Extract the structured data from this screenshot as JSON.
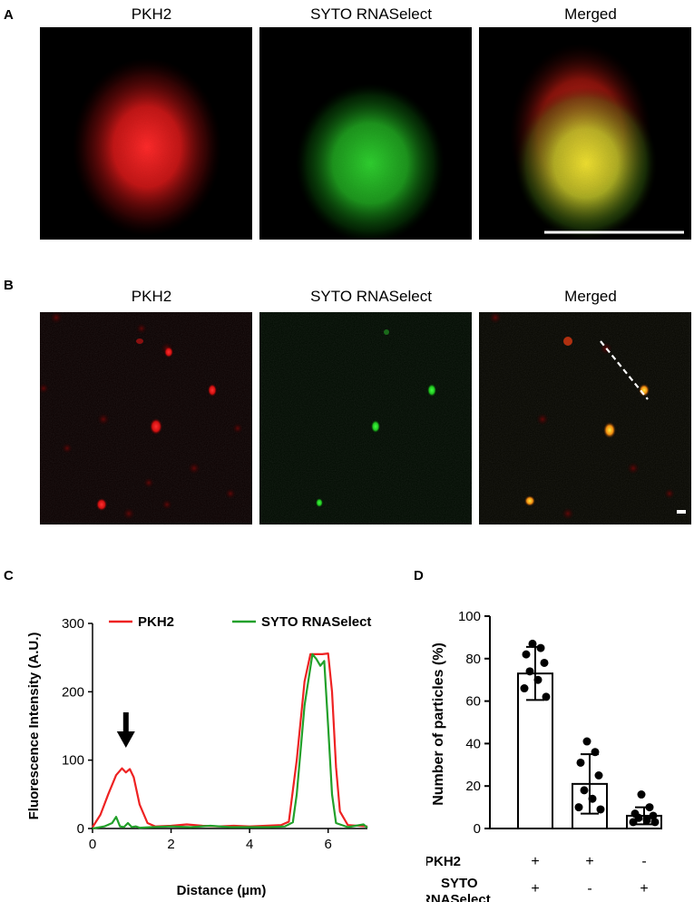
{
  "panels": {
    "A": {
      "letter": "A",
      "titles": [
        "PKH2",
        "SYTO RNASelect",
        "Merged"
      ]
    },
    "B": {
      "letter": "B",
      "titles": [
        "PKH2",
        "SYTO RNASelect",
        "Merged"
      ]
    },
    "C": {
      "letter": "C"
    },
    "D": {
      "letter": "D"
    }
  },
  "colors": {
    "pkh2": "#ee2222",
    "syto": "#22a02a",
    "merged": "#e8c020",
    "background": "#000000"
  },
  "chart_data": [
    {
      "type": "line",
      "xlabel": "Distance (µm)",
      "ylabel": "Fluorescence Intensity (A.U.)",
      "xlim": [
        0,
        7
      ],
      "ylim": [
        0,
        300
      ],
      "xticks": [
        0,
        2,
        4,
        6
      ],
      "yticks": [
        0,
        100,
        200,
        300
      ],
      "legend_position": "top",
      "annotation": "down-arrow at ~0.85 µm, above PKH2-only peak",
      "series": [
        {
          "name": "PKH2",
          "color": "#ee2222",
          "x": [
            0,
            0.2,
            0.4,
            0.6,
            0.75,
            0.85,
            0.95,
            1.05,
            1.2,
            1.4,
            1.6,
            2.0,
            2.4,
            2.8,
            3.2,
            3.6,
            4.0,
            4.4,
            4.8,
            5.0,
            5.2,
            5.4,
            5.55,
            5.7,
            5.85,
            6.0,
            6.1,
            6.2,
            6.3,
            6.5,
            7.0
          ],
          "y": [
            2,
            20,
            50,
            78,
            88,
            82,
            87,
            75,
            35,
            8,
            3,
            4,
            6,
            4,
            3,
            4,
            3,
            4,
            5,
            10,
            100,
            215,
            255,
            255,
            255,
            256,
            200,
            90,
            25,
            5,
            3
          ]
        },
        {
          "name": "SYTO RNASelect",
          "color": "#22a02a",
          "x": [
            0,
            0.3,
            0.5,
            0.6,
            0.7,
            0.8,
            0.9,
            1.0,
            1.1,
            1.2,
            1.5,
            2.0,
            2.5,
            3.0,
            3.5,
            4.0,
            4.5,
            4.9,
            5.1,
            5.2,
            5.4,
            5.6,
            5.7,
            5.8,
            5.9,
            6.0,
            6.1,
            6.2,
            6.5,
            6.9,
            7.0
          ],
          "y": [
            0,
            3,
            8,
            17,
            3,
            2,
            8,
            2,
            3,
            1,
            2,
            3,
            2,
            4,
            2,
            2,
            2,
            3,
            9,
            50,
            180,
            255,
            248,
            238,
            245,
            150,
            50,
            8,
            2,
            6,
            1
          ]
        }
      ]
    },
    {
      "type": "bar",
      "ylabel": "Number of particles (%)",
      "ylim": [
        0,
        100
      ],
      "yticks": [
        0,
        20,
        40,
        60,
        80,
        100
      ],
      "row_labels": [
        "PKH2",
        "SYTO RNASelect"
      ],
      "categories": [
        {
          "pkh2": "+",
          "syto": "+"
        },
        {
          "pkh2": "+",
          "syto": "-"
        },
        {
          "pkh2": "-",
          "syto": "+"
        }
      ],
      "values": [
        73,
        21,
        6
      ],
      "error": [
        12.5,
        14,
        4
      ],
      "points": [
        [
          87,
          85,
          82,
          78,
          74,
          70,
          66,
          62
        ],
        [
          41,
          36,
          31,
          25,
          18,
          14,
          10,
          9
        ],
        [
          16,
          10,
          7,
          6,
          5,
          4,
          3,
          3
        ]
      ]
    }
  ]
}
